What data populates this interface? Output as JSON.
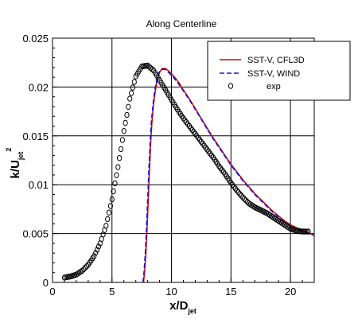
{
  "chart_data": {
    "type": "line",
    "title": "Along Centerline",
    "xlabel": "x/D",
    "xlabel_sub": "jet",
    "ylabel": "k/U",
    "ylabel_sub": "jet",
    "ylabel_sup": "2",
    "xlim": [
      0,
      22
    ],
    "ylim": [
      0,
      0.025
    ],
    "x_ticks": [
      0,
      5,
      10,
      15,
      20
    ],
    "x_tick_labels": [
      "0",
      "5",
      "10",
      "15",
      "20"
    ],
    "y_ticks": [
      0,
      0.005,
      0.01,
      0.015,
      0.02,
      0.025
    ],
    "y_tick_labels": [
      "0",
      "0.005",
      "0.01",
      "0.015",
      "0.02",
      "0.025"
    ],
    "grid": true,
    "legend_position": "top-right",
    "series": [
      {
        "name": "SST-V, CFL3D",
        "style": "solid",
        "color": "#d00000",
        "x": [
          7.65,
          7.75,
          7.85,
          7.95,
          8.05,
          8.15,
          8.25,
          8.35,
          8.5,
          8.65,
          8.8,
          9.0,
          9.2,
          9.5,
          9.8,
          10.2,
          10.6,
          11.0,
          11.5,
          12.0,
          12.5,
          13.0,
          13.5,
          14.0,
          14.5,
          15.0,
          15.5,
          16.0,
          16.5,
          17.0,
          17.5,
          18.0,
          18.5,
          19.0,
          19.5,
          20.0,
          20.5,
          21.0,
          21.5,
          22.0
        ],
        "y": [
          0.0,
          0.0012,
          0.003,
          0.0055,
          0.0085,
          0.0115,
          0.0142,
          0.0163,
          0.0183,
          0.0197,
          0.0207,
          0.0215,
          0.0219,
          0.0219,
          0.0216,
          0.0211,
          0.0205,
          0.0197,
          0.0188,
          0.0178,
          0.0168,
          0.0158,
          0.0148,
          0.0139,
          0.013,
          0.0121,
          0.0113,
          0.0105,
          0.0098,
          0.0091,
          0.0085,
          0.0079,
          0.0073,
          0.0068,
          0.0063,
          0.0059,
          0.0056,
          0.0053,
          0.0051,
          0.0048
        ]
      },
      {
        "name": "SST-V, WIND",
        "style": "dashed",
        "color": "#1010e0",
        "x": [
          7.6,
          7.7,
          7.8,
          7.9,
          8.0,
          8.1,
          8.2,
          8.3,
          8.45,
          8.6,
          8.75,
          8.95,
          9.15,
          9.45,
          9.75,
          10.15,
          10.55,
          11.0,
          11.5,
          12.0,
          12.5,
          13.0,
          13.5,
          14.0,
          14.5,
          15.0,
          15.5,
          16.0,
          16.5,
          17.0,
          17.5,
          18.0,
          18.5,
          19.0,
          19.5,
          20.0,
          20.5,
          21.0,
          21.5,
          22.0
        ],
        "y": [
          0.0,
          0.0012,
          0.003,
          0.0055,
          0.0085,
          0.0115,
          0.0142,
          0.0163,
          0.0183,
          0.0197,
          0.0207,
          0.0215,
          0.0218,
          0.0218,
          0.0215,
          0.021,
          0.0204,
          0.0196,
          0.0187,
          0.0177,
          0.0167,
          0.0157,
          0.0147,
          0.0138,
          0.0129,
          0.012,
          0.0112,
          0.0104,
          0.0097,
          0.009,
          0.0084,
          0.0078,
          0.0072,
          0.0067,
          0.0062,
          0.0058,
          0.0055,
          0.0052,
          0.005,
          0.0048
        ]
      },
      {
        "name": "exp",
        "style": "markers",
        "color": "#000000",
        "x": [
          1.0,
          1.5,
          2.0,
          2.5,
          3.0,
          3.5,
          4.0,
          4.5,
          5.0,
          5.5,
          6.0,
          6.5,
          7.0,
          7.5,
          8.0,
          8.5,
          9.0,
          9.5,
          10.0,
          10.5,
          11.0,
          11.5,
          12.0,
          12.5,
          13.0,
          13.5,
          14.0,
          14.5,
          15.0,
          15.5,
          16.0,
          16.5,
          17.0,
          17.5,
          18.0,
          18.5,
          19.0,
          19.5,
          20.0,
          20.5,
          21.0,
          21.5
        ],
        "y": [
          0.0005,
          0.0006,
          0.0008,
          0.0012,
          0.0018,
          0.0027,
          0.004,
          0.0058,
          0.0085,
          0.0118,
          0.0155,
          0.0188,
          0.0211,
          0.0221,
          0.0222,
          0.0217,
          0.0207,
          0.0197,
          0.0187,
          0.0177,
          0.0168,
          0.016,
          0.0152,
          0.0144,
          0.0136,
          0.0128,
          0.0119,
          0.0111,
          0.0102,
          0.0094,
          0.0087,
          0.0081,
          0.0077,
          0.0074,
          0.0071,
          0.0067,
          0.0063,
          0.0059,
          0.0055,
          0.0053,
          0.0052,
          0.0052
        ]
      }
    ]
  }
}
